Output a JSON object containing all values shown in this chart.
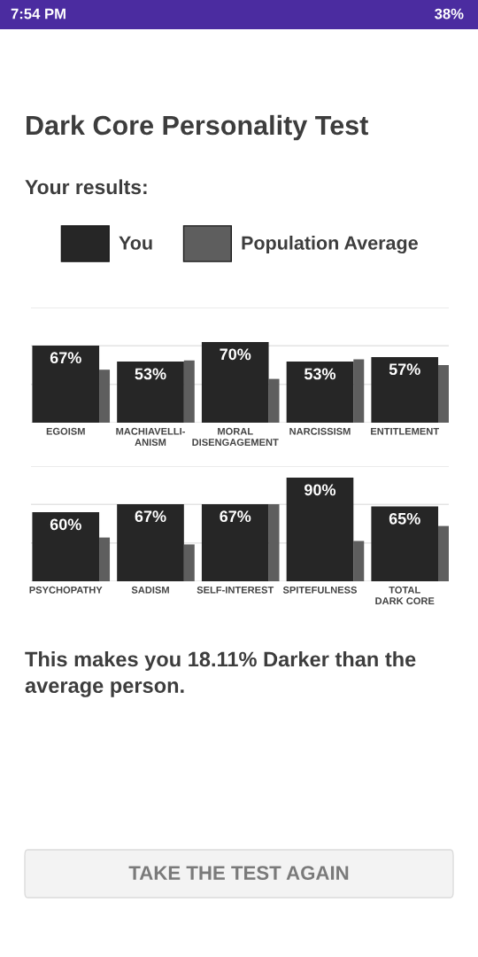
{
  "chart_data": [
    {
      "type": "bar",
      "title": "Dark Core Personality Test",
      "subtitle": "Your results:",
      "categories": [
        "EGOISM",
        "MACHIAVELLI-\nANISM",
        "MORAL\nDISENGAGEMENT",
        "NARCISSISM",
        "ENTITLEMENT"
      ],
      "series": [
        {
          "name": "You",
          "color": "#262626",
          "values": [
            67,
            53,
            70,
            53,
            57
          ],
          "value_labels": [
            "67%",
            "53%",
            "70%",
            "53%",
            "57%"
          ]
        },
        {
          "name": "Population Average",
          "color": "#5e5e5e",
          "values": [
            46,
            54,
            38,
            55,
            50
          ]
        }
      ],
      "ylim": [
        0,
        100
      ],
      "yticks": [
        {
          "value": 0,
          "label": null
        },
        {
          "value": 33.3,
          "label": null
        },
        {
          "value": 66.7,
          "label": null
        },
        {
          "value": 100,
          "label": null
        }
      ],
      "grid": "y",
      "tick_labels": "x",
      "legend": "top",
      "annotations": [
        "7:54 PM",
        "38%"
      ]
    },
    {
      "type": "bar",
      "categories": [
        "PSYCHOPATHY",
        "SADISM",
        "SELF-INTEREST",
        "SPITEFULNESS",
        "TOTAL\nDARK CORE"
      ],
      "series": [
        {
          "color": "#262626",
          "values": [
            60,
            67,
            67,
            90,
            65
          ],
          "value_labels": [
            "60%",
            "67%",
            "67%",
            "90%",
            "65%"
          ]
        },
        {
          "color": "#5e5e5e",
          "values": [
            38,
            32,
            67,
            35,
            48
          ]
        }
      ],
      "ylim": [
        0,
        100
      ],
      "yticks": [
        {
          "value": 0,
          "label": null
        },
        {
          "value": 33.3,
          "label": null
        },
        {
          "value": 66.7,
          "label": null
        },
        {
          "value": 100,
          "label": null
        }
      ],
      "grid": "y",
      "tick_labels": "x",
      "annotations": [
        "This makes you 18.11% Darker than the average person.",
        "TAKE THE TEST AGAIN"
      ]
    }
  ]
}
